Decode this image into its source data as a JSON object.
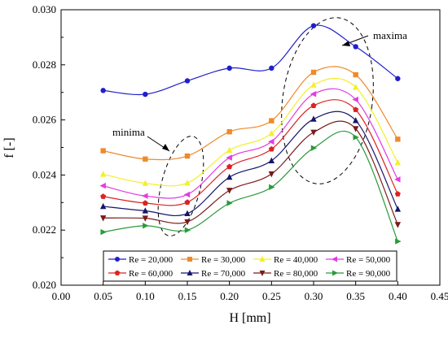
{
  "chart_data": {
    "type": "line",
    "xlabel": "H [mm]",
    "ylabel": "f [-]",
    "xlim": [
      0.0,
      0.45
    ],
    "ylim": [
      0.02,
      0.03
    ],
    "xticks": [
      "0.00",
      "0.05",
      "0.10",
      "0.15",
      "0.20",
      "0.25",
      "0.30",
      "0.35",
      "0.40",
      "0.45"
    ],
    "yticks": [
      "0.020",
      "0.022",
      "0.024",
      "0.026",
      "0.028",
      "0.030"
    ],
    "x": [
      0.05,
      0.1,
      0.15,
      0.2,
      0.25,
      0.3,
      0.35,
      0.4
    ],
    "grid": false,
    "legend_position": "bottom-center",
    "series": [
      {
        "name": "Re = 20,000",
        "color": "#1f1fcc",
        "marker": "circle",
        "values": [
          0.02707,
          0.02693,
          0.02742,
          0.02788,
          0.02788,
          0.02942,
          0.02866,
          0.0275
        ]
      },
      {
        "name": "Re = 30,000",
        "color": "#ef8a2b",
        "marker": "square",
        "values": [
          0.02488,
          0.02458,
          0.02469,
          0.02557,
          0.02597,
          0.02773,
          0.02764,
          0.0253
        ]
      },
      {
        "name": "Re = 40,000",
        "color": "#f2f02a",
        "marker": "triangle-up",
        "values": [
          0.02403,
          0.0237,
          0.02371,
          0.0249,
          0.02551,
          0.02727,
          0.02719,
          0.02445
        ]
      },
      {
        "name": "Re = 50,000",
        "color": "#e23ce2",
        "marker": "triangle-left",
        "values": [
          0.02361,
          0.02324,
          0.02329,
          0.02463,
          0.02521,
          0.02694,
          0.02674,
          0.02384
        ]
      },
      {
        "name": "Re = 60,000",
        "color": "#dd2222",
        "marker": "pentagon",
        "values": [
          0.02322,
          0.02298,
          0.02301,
          0.0243,
          0.02494,
          0.02652,
          0.02637,
          0.02331
        ]
      },
      {
        "name": "Re = 70,000",
        "color": "#15156b",
        "marker": "triangle-up",
        "values": [
          0.02286,
          0.0227,
          0.0226,
          0.02392,
          0.02452,
          0.02603,
          0.02598,
          0.02276
        ]
      },
      {
        "name": "Re = 80,000",
        "color": "#7a1a1a",
        "marker": "triangle-down",
        "values": [
          0.02244,
          0.02243,
          0.0223,
          0.02344,
          0.02404,
          0.02555,
          0.02568,
          0.0222
        ]
      },
      {
        "name": "Re = 90,000",
        "color": "#2a9a3a",
        "marker": "triangle-right",
        "values": [
          0.02193,
          0.02216,
          0.022,
          0.02298,
          0.02356,
          0.02498,
          0.02537,
          0.02159
        ]
      }
    ],
    "annotations": [
      {
        "text": "maxima",
        "target": "dashed ellipse around peaks near H = 0.30–0.35 mm"
      },
      {
        "text": "minima",
        "target": "dashed ellipse around troughs near H = 0.15 mm"
      }
    ]
  }
}
